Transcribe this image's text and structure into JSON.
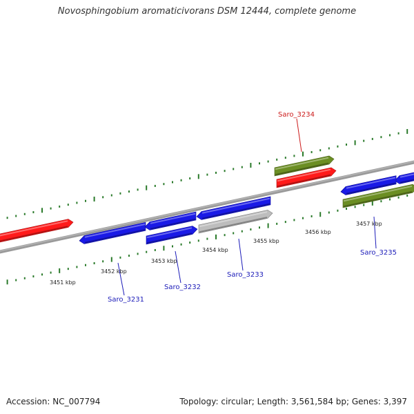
{
  "title": "Novosphingobium aromaticivorans DSM 12444, complete genome",
  "accession": "Accession: NC_007794",
  "summary": "Topology: circular; Length: 3,561,584 bp; Genes: 3,397",
  "colors": {
    "backbone": "#777777",
    "tick": "#2a7a2a",
    "red_gene": "#ff1a1a",
    "blue_gene": "#1a1ae6",
    "green_gene": "#6b8e23",
    "gray_gene": "#bdbdbd",
    "label_blue": "#1a1ab8",
    "label_red": "#cc1a1a"
  },
  "kbp_labels": [
    {
      "id": "k3451",
      "text": "3451 kbp"
    },
    {
      "id": "k3452",
      "text": "3452 kbp"
    },
    {
      "id": "k3453",
      "text": "3453 kbp"
    },
    {
      "id": "k3454",
      "text": "3454 kbp"
    },
    {
      "id": "k3455",
      "text": "3455 kbp"
    },
    {
      "id": "k3456",
      "text": "3456 kbp"
    },
    {
      "id": "k3457",
      "text": "3457 kbp"
    }
  ],
  "gene_labels": [
    {
      "id": "saro3231",
      "text": "Saro_3231",
      "color": "blue"
    },
    {
      "id": "saro3232",
      "text": "Saro_3232",
      "color": "blue"
    },
    {
      "id": "saro3233",
      "text": "Saro_3233",
      "color": "blue"
    },
    {
      "id": "saro3234",
      "text": "Saro_3234",
      "color": "red"
    },
    {
      "id": "saro3235",
      "text": "Saro_3235",
      "color": "blue"
    }
  ],
  "genes": [
    {
      "id": "g1",
      "color": "red",
      "strand": "forward"
    },
    {
      "id": "g2",
      "color": "blue",
      "strand": "reverse"
    },
    {
      "id": "g3",
      "color": "blue",
      "strand": "reverse"
    },
    {
      "id": "g4",
      "color": "blue",
      "strand": "reverse"
    },
    {
      "id": "g5",
      "color": "blue",
      "strand": "forward"
    },
    {
      "id": "g6",
      "color": "blue",
      "strand": "reverse"
    },
    {
      "id": "g7",
      "color": "gray",
      "strand": "forward"
    },
    {
      "id": "g8",
      "color": "green",
      "strand": "forward"
    },
    {
      "id": "g9",
      "color": "red",
      "strand": "forward"
    },
    {
      "id": "g10",
      "color": "blue",
      "strand": "forward"
    },
    {
      "id": "g11",
      "color": "blue",
      "strand": "reverse"
    },
    {
      "id": "g12",
      "color": "green",
      "strand": "forward"
    }
  ]
}
